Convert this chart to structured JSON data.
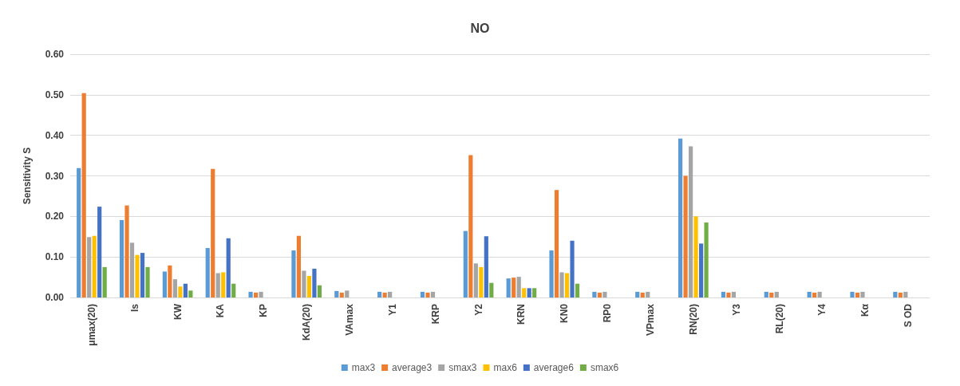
{
  "chart_data": {
    "type": "bar",
    "title": "NO",
    "ylabel": "Sensitivity S",
    "categories": [
      "μmax(20)",
      "Is",
      "KW",
      "KA",
      "KP",
      "KdA(20)",
      "VAmax",
      "Y1",
      "KRP",
      "Y2",
      "KRN",
      "KN0",
      "RP0",
      "VPmax",
      "RN(20)",
      "Y3",
      "RL(20)",
      "Y4",
      "Kα",
      "S OD"
    ],
    "series": [
      {
        "name": "max3",
        "color": "#5b9bd5",
        "values": [
          0.319,
          0.191,
          0.064,
          0.122,
          0.014,
          0.116,
          0.016,
          0.014,
          0.014,
          0.164,
          0.047,
          0.116,
          0.014,
          0.014,
          0.392,
          0.014,
          0.014,
          0.014,
          0.014,
          0.014
        ]
      },
      {
        "name": "average3",
        "color": "#ed7d31",
        "values": [
          0.504,
          0.227,
          0.079,
          0.317,
          0.012,
          0.152,
          0.012,
          0.012,
          0.012,
          0.351,
          0.049,
          0.265,
          0.012,
          0.012,
          0.3,
          0.012,
          0.012,
          0.012,
          0.012,
          0.012
        ]
      },
      {
        "name": "smax3",
        "color": "#a5a5a5",
        "values": [
          0.149,
          0.135,
          0.045,
          0.06,
          0.014,
          0.066,
          0.017,
          0.014,
          0.014,
          0.084,
          0.051,
          0.062,
          0.014,
          0.014,
          0.373,
          0.014,
          0.014,
          0.014,
          0.014,
          0.014
        ]
      },
      {
        "name": "max6",
        "color": "#ffc000",
        "values": [
          0.152,
          0.105,
          0.027,
          0.062,
          null,
          0.053,
          null,
          null,
          null,
          0.075,
          0.023,
          0.06,
          null,
          null,
          0.2,
          null,
          null,
          null,
          null,
          null
        ]
      },
      {
        "name": "average6",
        "color": "#4472c4",
        "values": [
          0.224,
          0.11,
          0.034,
          0.146,
          null,
          0.071,
          null,
          null,
          null,
          0.151,
          0.023,
          0.14,
          null,
          null,
          0.133,
          null,
          null,
          null,
          null,
          null
        ]
      },
      {
        "name": "smax6",
        "color": "#70ad47",
        "values": [
          0.075,
          0.075,
          0.017,
          0.034,
          null,
          0.03,
          null,
          null,
          null,
          0.036,
          0.023,
          0.034,
          null,
          null,
          0.185,
          null,
          null,
          null,
          null,
          null
        ]
      }
    ],
    "ylim": [
      0,
      0.6
    ],
    "yticks": [
      {
        "value": 0,
        "label": "0.00"
      },
      {
        "value": 0.1,
        "label": "0.10"
      },
      {
        "value": 0.2,
        "label": "0.20"
      },
      {
        "value": 0.3,
        "label": "0.30"
      },
      {
        "value": 0.4,
        "label": "0.40"
      },
      {
        "value": 0.5,
        "label": "0.50"
      },
      {
        "value": 0.6,
        "label": "0.60"
      }
    ],
    "grid": "y",
    "legend": "bottom"
  }
}
